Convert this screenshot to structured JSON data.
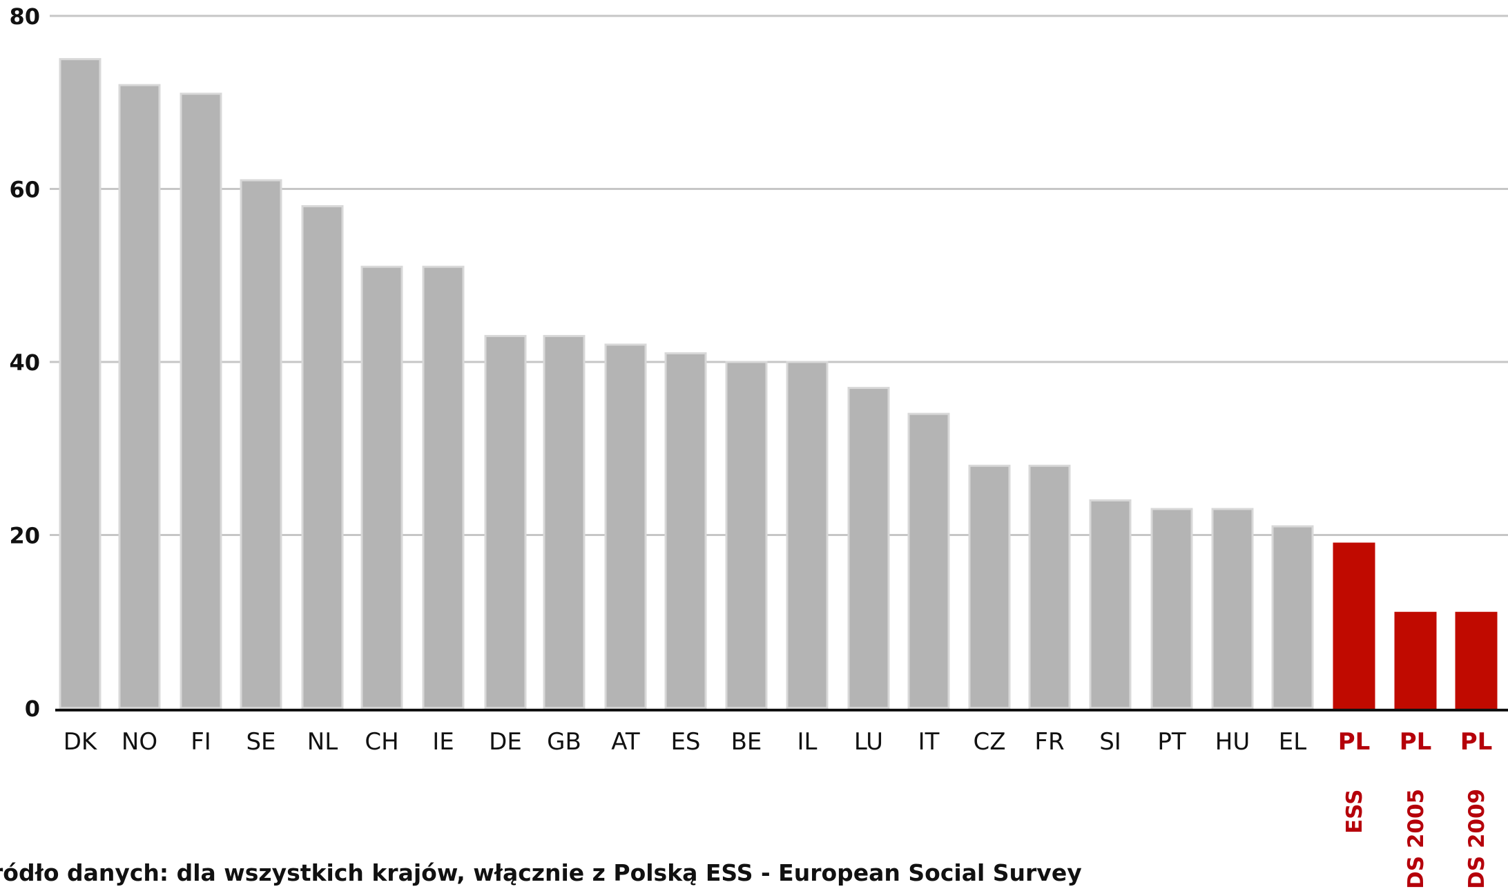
{
  "chart_data": {
    "type": "bar",
    "categories": [
      "DK",
      "NO",
      "FI",
      "SE",
      "NL",
      "CH",
      "IE",
      "DE",
      "GB",
      "AT",
      "ES",
      "BE",
      "IL",
      "LU",
      "IT",
      "CZ",
      "FR",
      "SI",
      "PT",
      "HU",
      "EL",
      "PL",
      "PL",
      "PL"
    ],
    "sublabels": [
      "",
      "",
      "",
      "",
      "",
      "",
      "",
      "",
      "",
      "",
      "",
      "",
      "",
      "",
      "",
      "",
      "",
      "",
      "",
      "",
      "",
      "ESS",
      "DS 2005",
      "DS 2009"
    ],
    "values": [
      75,
      72,
      71,
      61,
      58,
      51,
      51,
      43,
      43,
      42,
      41,
      40,
      40,
      37,
      34,
      28,
      28,
      24,
      23,
      23,
      21,
      19,
      11,
      11
    ],
    "highlight": [
      false,
      false,
      false,
      false,
      false,
      false,
      false,
      false,
      false,
      false,
      false,
      false,
      false,
      false,
      false,
      false,
      false,
      false,
      false,
      false,
      false,
      true,
      true,
      true
    ],
    "ylim": [
      0,
      80
    ],
    "yticks": [
      0,
      20,
      40,
      60,
      80
    ],
    "grid": true,
    "title": "",
    "xlabel": "",
    "ylabel": "",
    "colors": {
      "bar": "#b4b4b4",
      "bar_edge": "#d8d8d8",
      "highlight_bar": "#c00a00",
      "highlight_label": "#b5000a",
      "label": "#111111",
      "grid": "#c6c6c6",
      "axis": "#111111"
    }
  },
  "source_note": "ródło danych: dla wszystkich krajów, włącznie z Polską ESS - European Social Survey"
}
